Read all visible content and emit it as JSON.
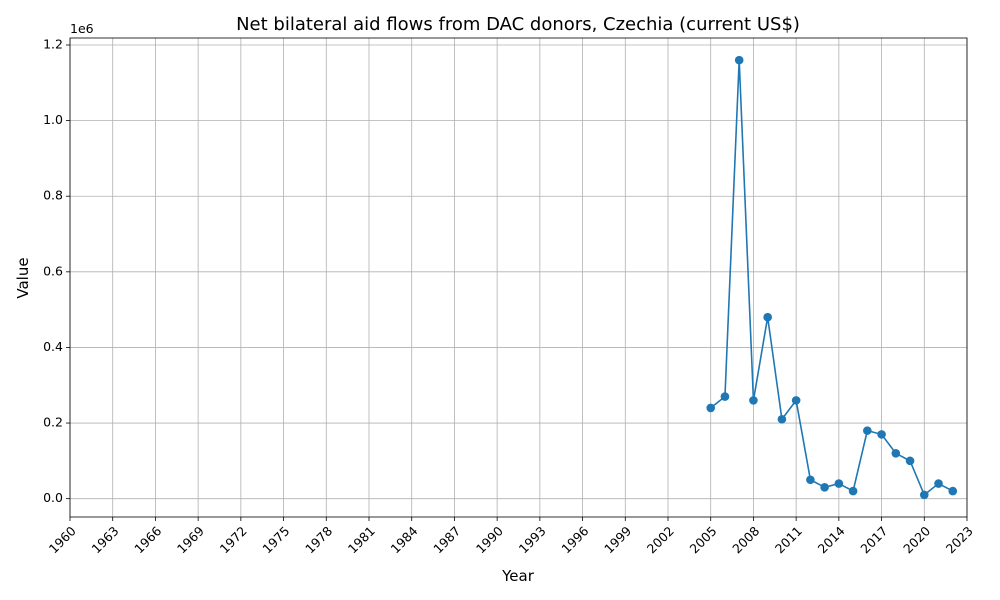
{
  "chart_data": {
    "type": "line",
    "title": "Net bilateral aid flows from DAC donors, Czechia (current US$)",
    "xlabel": "Year",
    "ylabel": "Value",
    "offset_label": "1e6",
    "x": [
      2005,
      2006,
      2007,
      2008,
      2009,
      2010,
      2011,
      2012,
      2013,
      2014,
      2015,
      2016,
      2017,
      2018,
      2019,
      2020,
      2021,
      2022
    ],
    "series": [
      {
        "values": [
          240000,
          270000,
          1160000,
          260000,
          480000,
          210000,
          260000,
          50000,
          30000,
          40000,
          20000,
          180000,
          170000,
          120000,
          100000,
          10000,
          40000,
          20000
        ],
        "color": "#1f77b4"
      }
    ],
    "xlim": [
      1960,
      2023
    ],
    "ylim": [
      -48500,
      1218500
    ],
    "x_ticks": [
      1960,
      1963,
      1966,
      1969,
      1972,
      1975,
      1978,
      1981,
      1984,
      1987,
      1990,
      1993,
      1996,
      1999,
      2002,
      2005,
      2008,
      2011,
      2014,
      2017,
      2020,
      2023
    ],
    "y_ticks": [
      0,
      200000,
      400000,
      600000,
      800000,
      1000000,
      1200000
    ],
    "y_tick_labels": [
      "0.0",
      "0.2",
      "0.4",
      "0.6",
      "0.8",
      "1.0",
      "1.2"
    ],
    "grid": true,
    "markers": true
  }
}
